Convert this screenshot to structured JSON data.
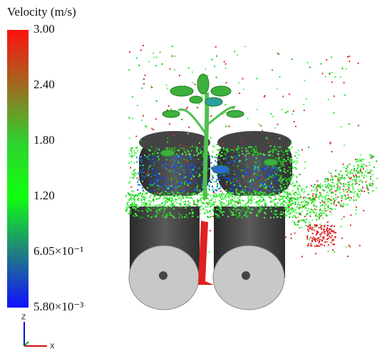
{
  "legend": {
    "title": "Velocity (m/s)",
    "ticks": [
      "3.00",
      "2.40",
      "1.80",
      "1.20",
      "6.05×10⁻¹",
      "5.80×10⁻³"
    ]
  },
  "axes": {
    "z": "Z",
    "x": "X"
  }
}
